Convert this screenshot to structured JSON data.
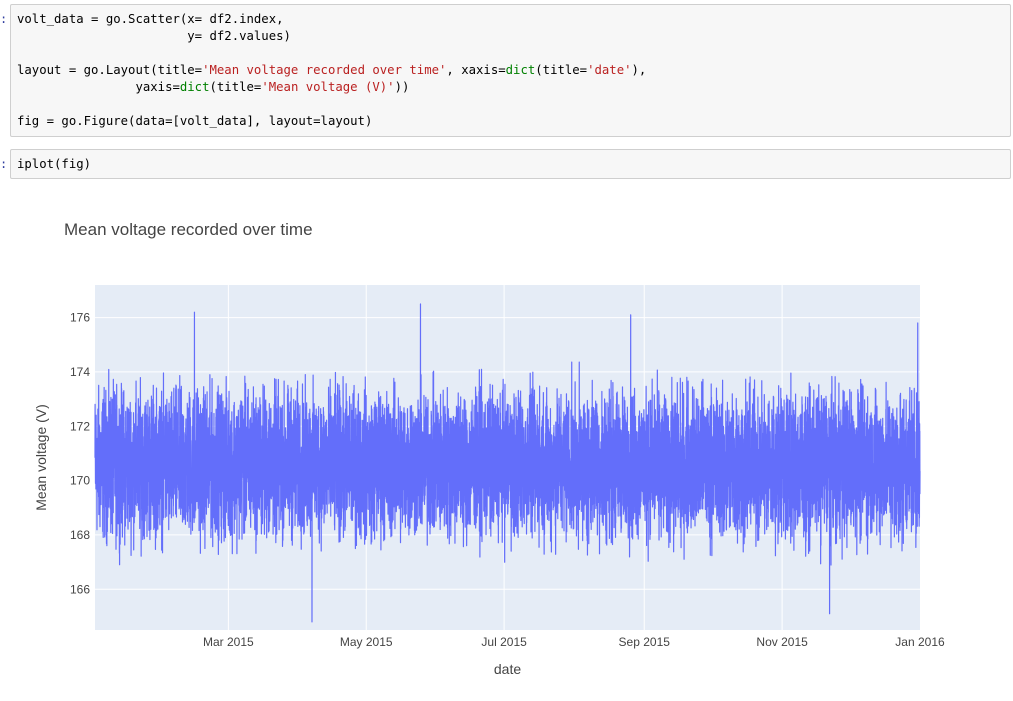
{
  "cells": [
    {
      "prompt": ":",
      "lines": [
        [
          {
            "t": "volt_data = go.Scatter(x= df2.index,"
          }
        ],
        [
          {
            "t": "                       y= df2.values)"
          }
        ],
        [
          {
            "t": ""
          }
        ],
        [
          {
            "t": "layout = go.Layout(title="
          },
          {
            "t": "'Mean voltage recorded over time'",
            "c": "str"
          },
          {
            "t": ", xaxis="
          },
          {
            "t": "dict",
            "c": "kw"
          },
          {
            "t": "(title="
          },
          {
            "t": "'date'",
            "c": "str"
          },
          {
            "t": "),"
          }
        ],
        [
          {
            "t": "                yaxis="
          },
          {
            "t": "dict",
            "c": "kw"
          },
          {
            "t": "(title="
          },
          {
            "t": "'Mean voltage (V)'",
            "c": "str"
          },
          {
            "t": "))"
          }
        ],
        [
          {
            "t": ""
          }
        ],
        [
          {
            "t": "fig = go.Figure(data=[volt_data], layout=layout)"
          }
        ]
      ]
    },
    {
      "prompt": ":",
      "lines": [
        [
          {
            "t": "iplot(fig)"
          }
        ]
      ]
    }
  ],
  "chart_data": {
    "type": "line",
    "title": "Mean voltage recorded over time",
    "xlabel": "date",
    "ylabel": "Mean voltage (V)",
    "x_range": [
      "2015-01-01",
      "2016-01-01"
    ],
    "ylim": [
      164.5,
      177.2
    ],
    "x_ticks": [
      {
        "date": "2015-03-01",
        "label": "Mar 2015"
      },
      {
        "date": "2015-05-01",
        "label": "May 2015"
      },
      {
        "date": "2015-07-01",
        "label": "Jul 2015"
      },
      {
        "date": "2015-09-01",
        "label": "Sep 2015"
      },
      {
        "date": "2015-11-01",
        "label": "Nov 2015"
      },
      {
        "date": "2016-01-01",
        "label": "Jan 2016"
      }
    ],
    "y_ticks": [
      166,
      168,
      170,
      172,
      174,
      176
    ],
    "series": [
      {
        "color": "#636efa",
        "y_min": 164.8,
        "y_max": 176.5,
        "y_center": 170.6,
        "noted_extremes": [
          {
            "date": "2015-02-14",
            "value": 176.2
          },
          {
            "date": "2015-04-07",
            "value": 164.8
          },
          {
            "date": "2015-05-25",
            "value": 176.5
          },
          {
            "date": "2015-08-26",
            "value": 176.1
          },
          {
            "date": "2015-11-22",
            "value": 165.1
          },
          {
            "date": "2015-12-31",
            "value": 175.8
          }
        ]
      }
    ],
    "grid": true
  },
  "colors": {
    "plot_bg": "#e5ecf6",
    "grid": "#ffffff",
    "trace": "#636efa",
    "axis_text": "#444444"
  }
}
